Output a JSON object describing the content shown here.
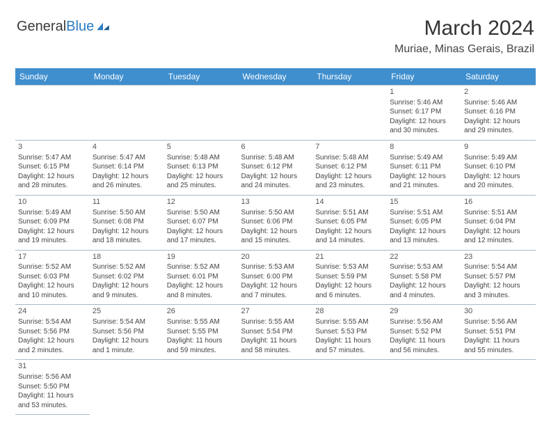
{
  "logo": {
    "general": "General",
    "blue": "Blue"
  },
  "title": "March 2024",
  "location": "Muriae, Minas Gerais, Brazil",
  "colors": {
    "header_bg": "#3f8fcf",
    "header_text": "#ffffff",
    "cell_border": "#a8b8c8",
    "text": "#444444",
    "logo_blue": "#2b7cc2",
    "background": "#ffffff"
  },
  "weekdays": [
    "Sunday",
    "Monday",
    "Tuesday",
    "Wednesday",
    "Thursday",
    "Friday",
    "Saturday"
  ],
  "weeks": [
    [
      {
        "day": "",
        "sunrise": "",
        "sunset": "",
        "daylight": ""
      },
      {
        "day": "",
        "sunrise": "",
        "sunset": "",
        "daylight": ""
      },
      {
        "day": "",
        "sunrise": "",
        "sunset": "",
        "daylight": ""
      },
      {
        "day": "",
        "sunrise": "",
        "sunset": "",
        "daylight": ""
      },
      {
        "day": "",
        "sunrise": "",
        "sunset": "",
        "daylight": ""
      },
      {
        "day": "1",
        "sunrise": "Sunrise: 5:46 AM",
        "sunset": "Sunset: 6:17 PM",
        "daylight": "Daylight: 12 hours and 30 minutes."
      },
      {
        "day": "2",
        "sunrise": "Sunrise: 5:46 AM",
        "sunset": "Sunset: 6:16 PM",
        "daylight": "Daylight: 12 hours and 29 minutes."
      }
    ],
    [
      {
        "day": "3",
        "sunrise": "Sunrise: 5:47 AM",
        "sunset": "Sunset: 6:15 PM",
        "daylight": "Daylight: 12 hours and 28 minutes."
      },
      {
        "day": "4",
        "sunrise": "Sunrise: 5:47 AM",
        "sunset": "Sunset: 6:14 PM",
        "daylight": "Daylight: 12 hours and 26 minutes."
      },
      {
        "day": "5",
        "sunrise": "Sunrise: 5:48 AM",
        "sunset": "Sunset: 6:13 PM",
        "daylight": "Daylight: 12 hours and 25 minutes."
      },
      {
        "day": "6",
        "sunrise": "Sunrise: 5:48 AM",
        "sunset": "Sunset: 6:12 PM",
        "daylight": "Daylight: 12 hours and 24 minutes."
      },
      {
        "day": "7",
        "sunrise": "Sunrise: 5:48 AM",
        "sunset": "Sunset: 6:12 PM",
        "daylight": "Daylight: 12 hours and 23 minutes."
      },
      {
        "day": "8",
        "sunrise": "Sunrise: 5:49 AM",
        "sunset": "Sunset: 6:11 PM",
        "daylight": "Daylight: 12 hours and 21 minutes."
      },
      {
        "day": "9",
        "sunrise": "Sunrise: 5:49 AM",
        "sunset": "Sunset: 6:10 PM",
        "daylight": "Daylight: 12 hours and 20 minutes."
      }
    ],
    [
      {
        "day": "10",
        "sunrise": "Sunrise: 5:49 AM",
        "sunset": "Sunset: 6:09 PM",
        "daylight": "Daylight: 12 hours and 19 minutes."
      },
      {
        "day": "11",
        "sunrise": "Sunrise: 5:50 AM",
        "sunset": "Sunset: 6:08 PM",
        "daylight": "Daylight: 12 hours and 18 minutes."
      },
      {
        "day": "12",
        "sunrise": "Sunrise: 5:50 AM",
        "sunset": "Sunset: 6:07 PM",
        "daylight": "Daylight: 12 hours and 17 minutes."
      },
      {
        "day": "13",
        "sunrise": "Sunrise: 5:50 AM",
        "sunset": "Sunset: 6:06 PM",
        "daylight": "Daylight: 12 hours and 15 minutes."
      },
      {
        "day": "14",
        "sunrise": "Sunrise: 5:51 AM",
        "sunset": "Sunset: 6:05 PM",
        "daylight": "Daylight: 12 hours and 14 minutes."
      },
      {
        "day": "15",
        "sunrise": "Sunrise: 5:51 AM",
        "sunset": "Sunset: 6:05 PM",
        "daylight": "Daylight: 12 hours and 13 minutes."
      },
      {
        "day": "16",
        "sunrise": "Sunrise: 5:51 AM",
        "sunset": "Sunset: 6:04 PM",
        "daylight": "Daylight: 12 hours and 12 minutes."
      }
    ],
    [
      {
        "day": "17",
        "sunrise": "Sunrise: 5:52 AM",
        "sunset": "Sunset: 6:03 PM",
        "daylight": "Daylight: 12 hours and 10 minutes."
      },
      {
        "day": "18",
        "sunrise": "Sunrise: 5:52 AM",
        "sunset": "Sunset: 6:02 PM",
        "daylight": "Daylight: 12 hours and 9 minutes."
      },
      {
        "day": "19",
        "sunrise": "Sunrise: 5:52 AM",
        "sunset": "Sunset: 6:01 PM",
        "daylight": "Daylight: 12 hours and 8 minutes."
      },
      {
        "day": "20",
        "sunrise": "Sunrise: 5:53 AM",
        "sunset": "Sunset: 6:00 PM",
        "daylight": "Daylight: 12 hours and 7 minutes."
      },
      {
        "day": "21",
        "sunrise": "Sunrise: 5:53 AM",
        "sunset": "Sunset: 5:59 PM",
        "daylight": "Daylight: 12 hours and 6 minutes."
      },
      {
        "day": "22",
        "sunrise": "Sunrise: 5:53 AM",
        "sunset": "Sunset: 5:58 PM",
        "daylight": "Daylight: 12 hours and 4 minutes."
      },
      {
        "day": "23",
        "sunrise": "Sunrise: 5:54 AM",
        "sunset": "Sunset: 5:57 PM",
        "daylight": "Daylight: 12 hours and 3 minutes."
      }
    ],
    [
      {
        "day": "24",
        "sunrise": "Sunrise: 5:54 AM",
        "sunset": "Sunset: 5:56 PM",
        "daylight": "Daylight: 12 hours and 2 minutes."
      },
      {
        "day": "25",
        "sunrise": "Sunrise: 5:54 AM",
        "sunset": "Sunset: 5:56 PM",
        "daylight": "Daylight: 12 hours and 1 minute."
      },
      {
        "day": "26",
        "sunrise": "Sunrise: 5:55 AM",
        "sunset": "Sunset: 5:55 PM",
        "daylight": "Daylight: 11 hours and 59 minutes."
      },
      {
        "day": "27",
        "sunrise": "Sunrise: 5:55 AM",
        "sunset": "Sunset: 5:54 PM",
        "daylight": "Daylight: 11 hours and 58 minutes."
      },
      {
        "day": "28",
        "sunrise": "Sunrise: 5:55 AM",
        "sunset": "Sunset: 5:53 PM",
        "daylight": "Daylight: 11 hours and 57 minutes."
      },
      {
        "day": "29",
        "sunrise": "Sunrise: 5:56 AM",
        "sunset": "Sunset: 5:52 PM",
        "daylight": "Daylight: 11 hours and 56 minutes."
      },
      {
        "day": "30",
        "sunrise": "Sunrise: 5:56 AM",
        "sunset": "Sunset: 5:51 PM",
        "daylight": "Daylight: 11 hours and 55 minutes."
      }
    ],
    [
      {
        "day": "31",
        "sunrise": "Sunrise: 5:56 AM",
        "sunset": "Sunset: 5:50 PM",
        "daylight": "Daylight: 11 hours and 53 minutes."
      },
      {
        "day": "",
        "sunrise": "",
        "sunset": "",
        "daylight": ""
      },
      {
        "day": "",
        "sunrise": "",
        "sunset": "",
        "daylight": ""
      },
      {
        "day": "",
        "sunrise": "",
        "sunset": "",
        "daylight": ""
      },
      {
        "day": "",
        "sunrise": "",
        "sunset": "",
        "daylight": ""
      },
      {
        "day": "",
        "sunrise": "",
        "sunset": "",
        "daylight": ""
      },
      {
        "day": "",
        "sunrise": "",
        "sunset": "",
        "daylight": ""
      }
    ]
  ]
}
